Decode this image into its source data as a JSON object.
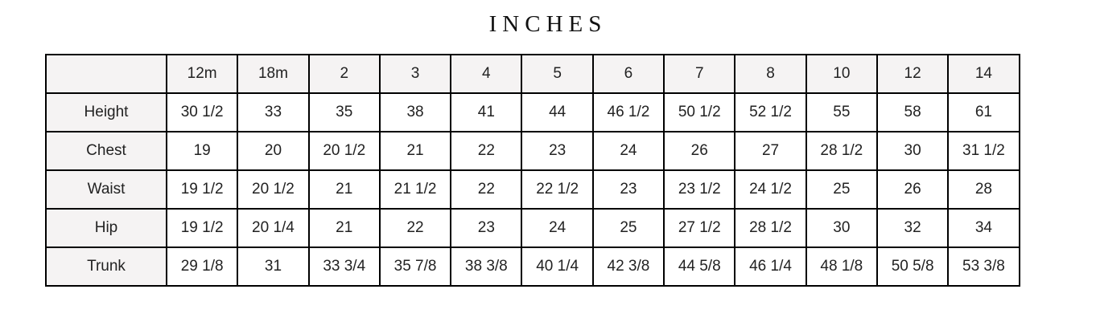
{
  "title": "INCHES",
  "table": {
    "columns": [
      "",
      "12m",
      "18m",
      "2",
      "3",
      "4",
      "5",
      "6",
      "7",
      "8",
      "10",
      "12",
      "14"
    ],
    "rows": [
      {
        "label": "Height",
        "values": [
          "30 1/2",
          "33",
          "35",
          "38",
          "41",
          "44",
          "46 1/2",
          "50 1/2",
          "52 1/2",
          "55",
          "58",
          "61"
        ]
      },
      {
        "label": "Chest",
        "values": [
          "19",
          "20",
          "20 1/2",
          "21",
          "22",
          "23",
          "24",
          "26",
          "27",
          "28 1/2",
          "30",
          "31 1/2"
        ]
      },
      {
        "label": "Waist",
        "values": [
          "19 1/2",
          "20 1/2",
          "21",
          "21 1/2",
          "22",
          "22 1/2",
          "23",
          "23 1/2",
          "24 1/2",
          "25",
          "26",
          "28"
        ]
      },
      {
        "label": "Hip",
        "values": [
          "19 1/2",
          "20 1/4",
          "21",
          "22",
          "23",
          "24",
          "25",
          "27 1/2",
          "28 1/2",
          "30",
          "32",
          "34"
        ]
      },
      {
        "label": "Trunk",
        "values": [
          "29 1/8",
          "31",
          "33 3/4",
          "35 7/8",
          "38 3/8",
          "40 1/4",
          "42 3/8",
          "44 5/8",
          "46 1/4",
          "48 1/8",
          "50 5/8",
          "53 3/8"
        ]
      }
    ]
  },
  "colors": {
    "header_bg": "#f5f3f3",
    "border": "#000000"
  }
}
